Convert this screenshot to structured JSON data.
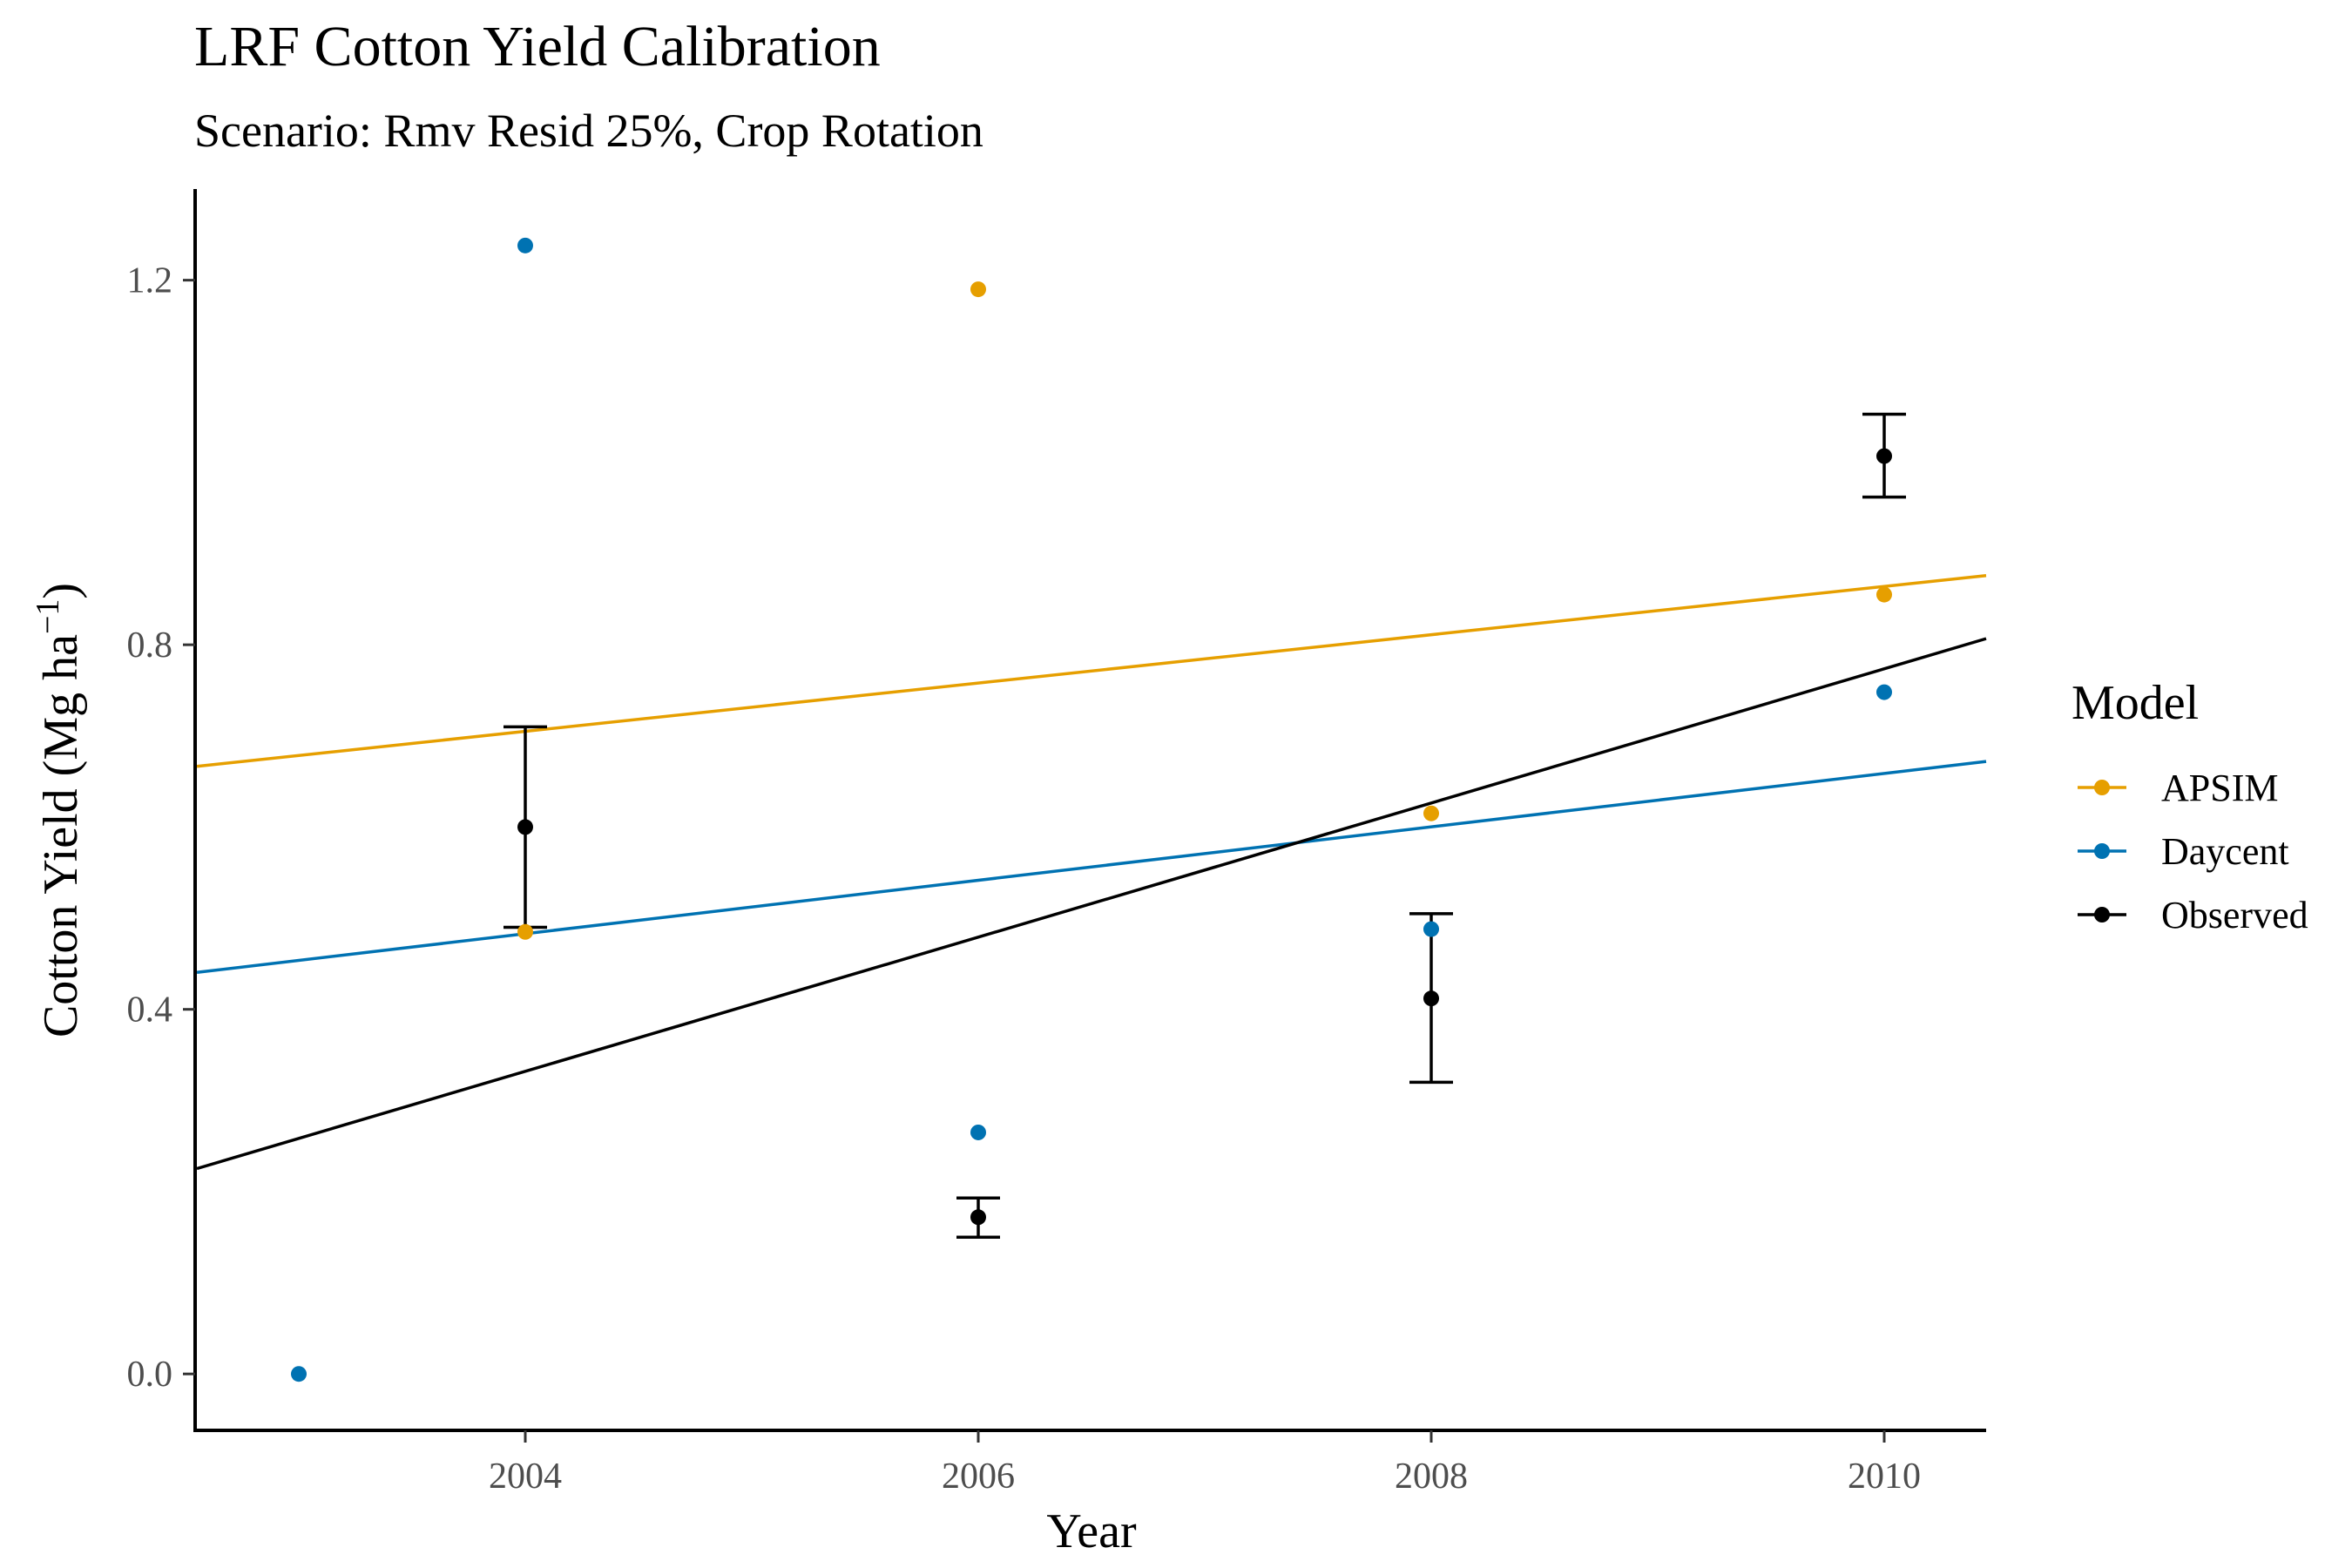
{
  "chart_data": {
    "type": "scatter",
    "title": "LRF Cotton Yield Calibration",
    "subtitle": "Scenario: Rmv Resid 25%, Crop Rotation",
    "xlabel": "Year",
    "ylabel_main": "Cotton Yield (Mg ha",
    "ylabel_sup": "−1",
    "ylabel_close": ")",
    "xlim": [
      2002.55,
      2010.45
    ],
    "ylim": [
      -0.06,
      1.3
    ],
    "x_ticks": [
      2004,
      2006,
      2008,
      2010
    ],
    "x_tick_labels": [
      "2004",
      "2006",
      "2008",
      "2010"
    ],
    "y_ticks": [
      0.0,
      0.4,
      0.8,
      1.2
    ],
    "y_tick_labels": [
      "0.0",
      "0.4",
      "0.8",
      "1.2"
    ],
    "grid": false,
    "legend": {
      "title": "Model",
      "position": "right",
      "entries": [
        {
          "label": "APSIM",
          "color": "#E69F00"
        },
        {
          "label": "Daycent",
          "color": "#0072B2"
        },
        {
          "label": "Observed",
          "color": "#000000"
        }
      ]
    },
    "series": [
      {
        "name": "APSIM",
        "color": "#E69F00",
        "points": [
          {
            "x": 2004,
            "y": 0.485
          },
          {
            "x": 2006,
            "y": 1.19
          },
          {
            "x": 2008,
            "y": 0.615
          },
          {
            "x": 2010,
            "y": 0.855
          }
        ],
        "trend": {
          "intercept_2004": 0.705,
          "slope": 0.0265
        }
      },
      {
        "name": "Daycent",
        "color": "#0072B2",
        "points": [
          {
            "x": 2003,
            "y": 0.0
          },
          {
            "x": 2004,
            "y": 1.238
          },
          {
            "x": 2006,
            "y": 0.265
          },
          {
            "x": 2008,
            "y": 0.488
          },
          {
            "x": 2010,
            "y": 0.748
          }
        ],
        "trend": {
          "intercept_2004": 0.483,
          "slope": 0.0293
        }
      },
      {
        "name": "Observed",
        "color": "#000000",
        "points": [
          {
            "x": 2004,
            "y": 0.6,
            "ymin": 0.49,
            "ymax": 0.71
          },
          {
            "x": 2006,
            "y": 0.172,
            "ymin": 0.15,
            "ymax": 0.193
          },
          {
            "x": 2008,
            "y": 0.412,
            "ymin": 0.32,
            "ymax": 0.505
          },
          {
            "x": 2010,
            "y": 1.007,
            "ymin": 0.962,
            "ymax": 1.053
          }
        ],
        "trend": {
          "intercept_2004": 0.332,
          "slope": 0.0736
        }
      }
    ]
  }
}
